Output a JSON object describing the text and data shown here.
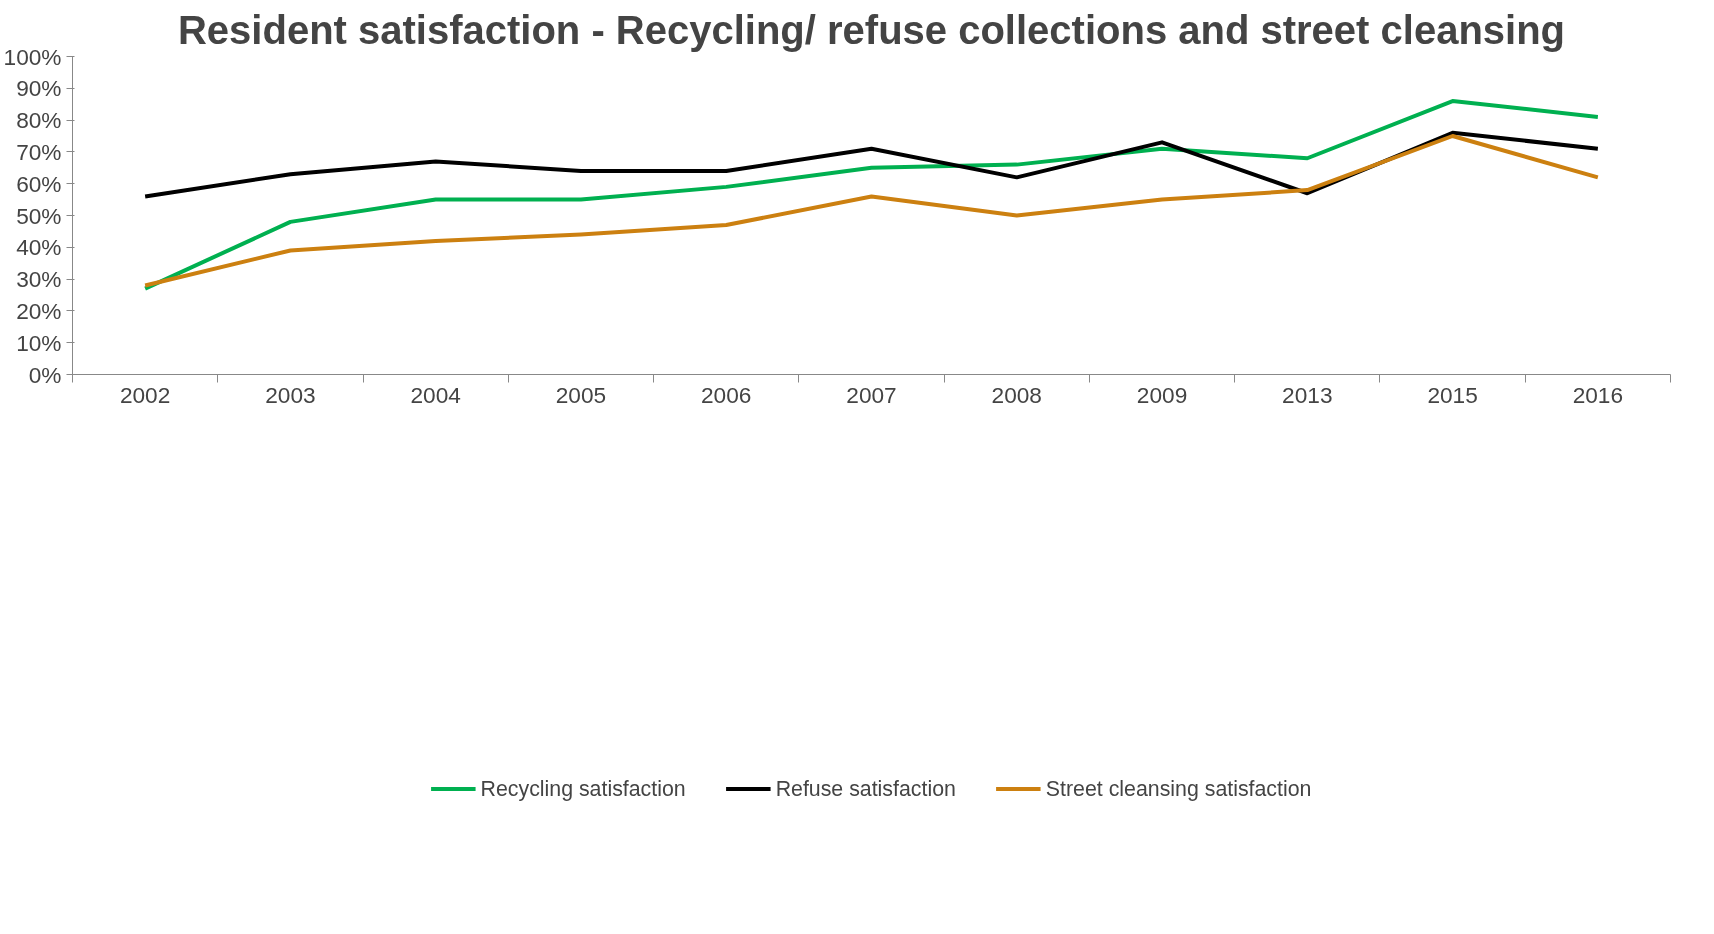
{
  "chart_data": {
    "type": "line",
    "title": "Resident satisfaction - Recycling/ refuse collections and street cleansing",
    "categories": [
      "2002",
      "2003",
      "2004",
      "2005",
      "2006",
      "2007",
      "2008",
      "2009",
      "2013",
      "2015",
      "2016"
    ],
    "series": [
      {
        "name": "Recycling satisfaction",
        "color": "#00b050",
        "values": [
          27,
          48,
          55,
          55,
          59,
          65,
          66,
          71,
          68,
          86,
          81
        ]
      },
      {
        "name": "Refuse satisfaction",
        "color": "#000000",
        "values": [
          56,
          63,
          67,
          64,
          64,
          71,
          62,
          73,
          57,
          76,
          71
        ]
      },
      {
        "name": "Street cleansing satisfaction",
        "color": "#cc8010",
        "values": [
          28,
          39,
          42,
          44,
          47,
          56,
          50,
          55,
          58,
          75,
          62
        ]
      }
    ],
    "ylim": [
      0,
      100
    ],
    "yticks": [
      {
        "value": 0,
        "label": "0%"
      },
      {
        "value": 10,
        "label": "10%"
      },
      {
        "value": 20,
        "label": "20%"
      },
      {
        "value": 30,
        "label": "30%"
      },
      {
        "value": 40,
        "label": "40%"
      },
      {
        "value": 50,
        "label": "50%"
      },
      {
        "value": 60,
        "label": "60%"
      },
      {
        "value": 70,
        "label": "70%"
      },
      {
        "value": 80,
        "label": "80%"
      },
      {
        "value": 90,
        "label": "90%"
      },
      {
        "value": 100,
        "label": "100%"
      }
    ],
    "grid": false,
    "legend": "bottom",
    "marker": "none",
    "line_style": "solid"
  }
}
